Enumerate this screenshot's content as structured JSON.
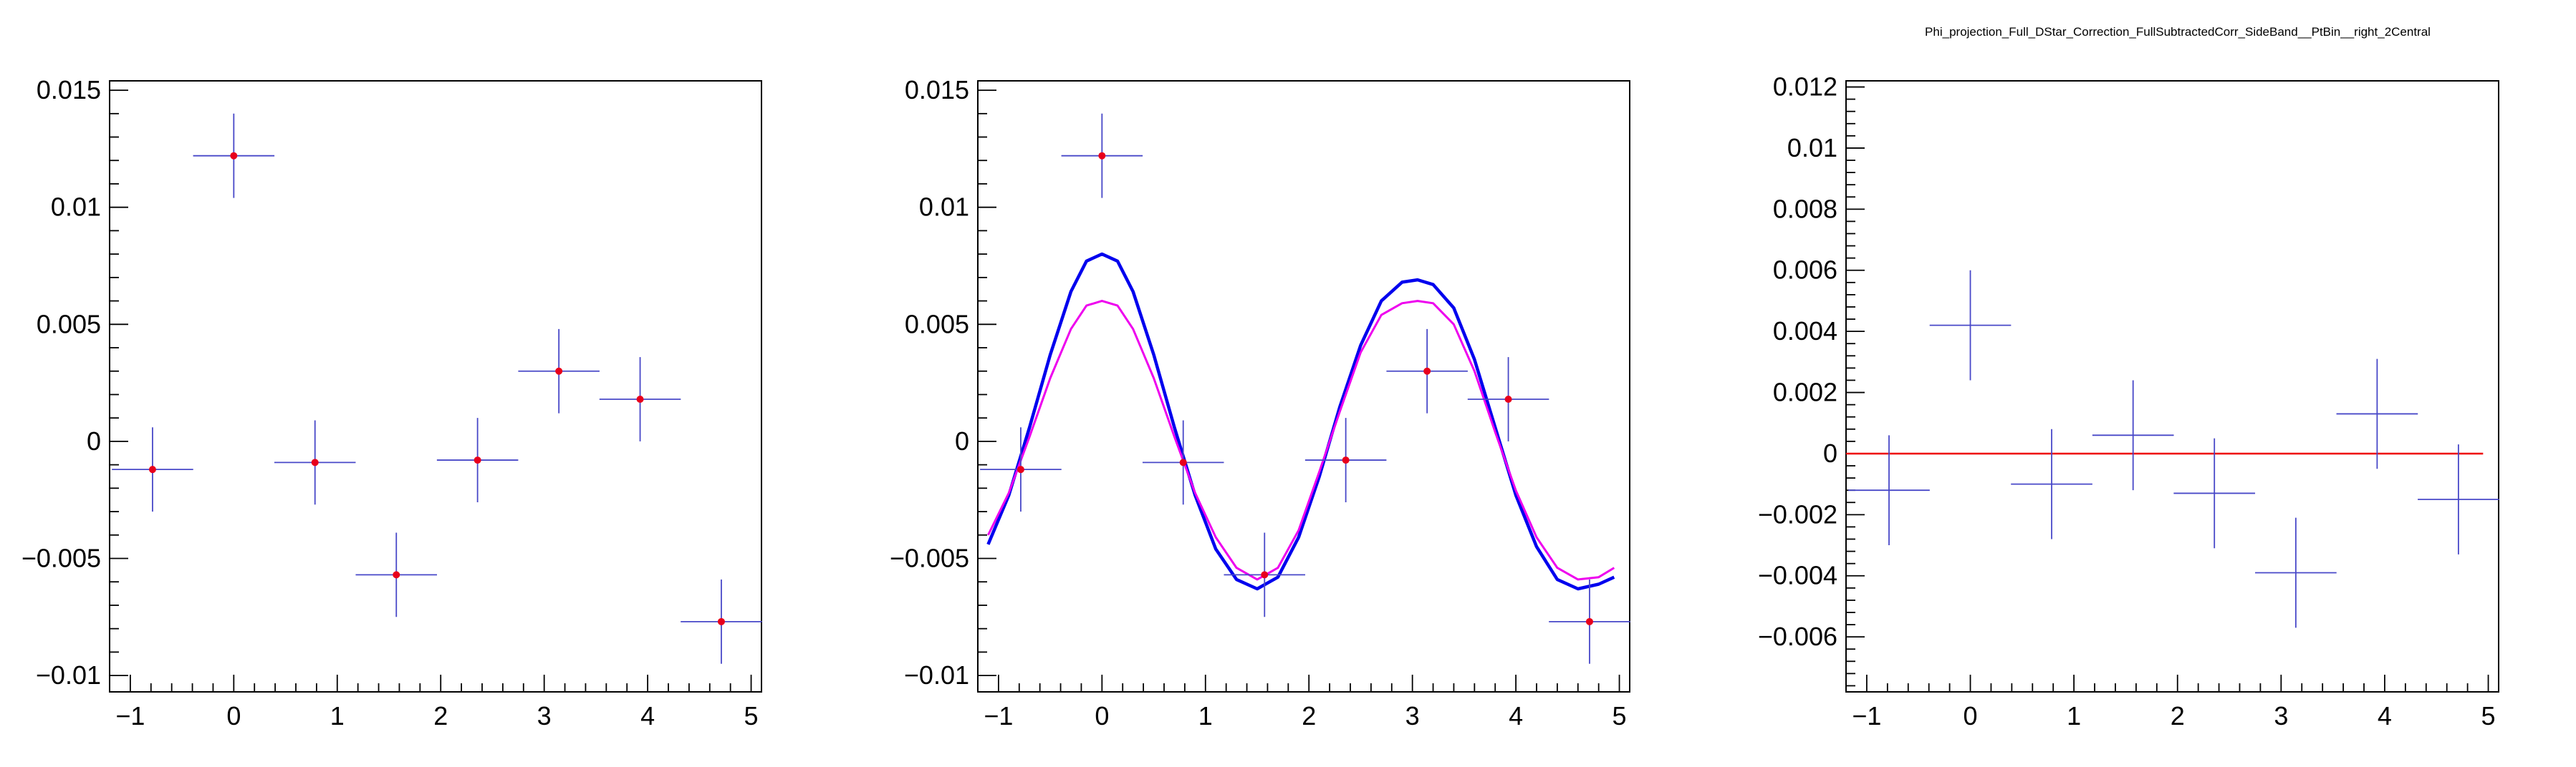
{
  "figure_title": "Phi_projection_Full_DStar_Correction_FullSubtractedCorr_SideBand__PtBin__right_2Central",
  "colors": {
    "points": "#e8001c",
    "error_bars": "#4848c8",
    "fit_blue": "#0000ee",
    "fit_magenta": "#ee00ee",
    "zero_line": "#ee0000",
    "frame": "#000000"
  },
  "chart_data": [
    {
      "type": "scatter",
      "title": "",
      "xlabel": "",
      "ylabel": "",
      "xlim": [
        -1.2,
        5.1
      ],
      "ylim": [
        -0.0107,
        0.0154
      ],
      "x_ticks": [
        -1,
        0,
        1,
        2,
        3,
        4,
        5
      ],
      "x_tick_labels": [
        "−1",
        "0",
        "1",
        "2",
        "3",
        "4",
        "5"
      ],
      "y_ticks": [
        -0.01,
        -0.005,
        0,
        0.005,
        0.01,
        0.015
      ],
      "y_tick_labels": [
        "−0.01",
        "−0.005",
        "0",
        "0.005",
        "0.01",
        "0.015"
      ],
      "grid": false,
      "series": [
        {
          "points": [
            {
              "x": -0.785,
              "y": -0.0012,
              "xerr": 0.393,
              "yerr": 0.0018
            },
            {
              "x": 0.0,
              "y": 0.0122,
              "xerr": 0.393,
              "yerr": 0.0018
            },
            {
              "x": 0.785,
              "y": -0.0009,
              "xerr": 0.393,
              "yerr": 0.0018
            },
            {
              "x": 1.571,
              "y": -0.0057,
              "xerr": 0.393,
              "yerr": 0.0018
            },
            {
              "x": 2.356,
              "y": -0.0008,
              "xerr": 0.393,
              "yerr": 0.0018
            },
            {
              "x": 3.142,
              "y": 0.003,
              "xerr": 0.393,
              "yerr": 0.0018
            },
            {
              "x": 3.927,
              "y": 0.0018,
              "xerr": 0.393,
              "yerr": 0.0018
            },
            {
              "x": 4.712,
              "y": -0.0077,
              "xerr": 0.393,
              "yerr": 0.0018
            }
          ]
        }
      ]
    },
    {
      "type": "scatter",
      "title": "",
      "xlabel": "",
      "ylabel": "",
      "xlim": [
        -1.2,
        5.1
      ],
      "ylim": [
        -0.0107,
        0.0154
      ],
      "x_ticks": [
        -1,
        0,
        1,
        2,
        3,
        4,
        5
      ],
      "x_tick_labels": [
        "−1",
        "0",
        "1",
        "2",
        "3",
        "4",
        "5"
      ],
      "y_ticks": [
        -0.01,
        -0.005,
        0,
        0.005,
        0.01,
        0.015
      ],
      "y_tick_labels": [
        "−0.01",
        "−0.005",
        "0",
        "0.005",
        "0.01",
        "0.015"
      ],
      "grid": false,
      "series": [
        {
          "points": [
            {
              "x": -0.785,
              "y": -0.0012,
              "xerr": 0.393,
              "yerr": 0.0018
            },
            {
              "x": 0.0,
              "y": 0.0122,
              "xerr": 0.393,
              "yerr": 0.0018
            },
            {
              "x": 0.785,
              "y": -0.0009,
              "xerr": 0.393,
              "yerr": 0.0018
            },
            {
              "x": 1.571,
              "y": -0.0057,
              "xerr": 0.393,
              "yerr": 0.0018
            },
            {
              "x": 2.356,
              "y": -0.0008,
              "xerr": 0.393,
              "yerr": 0.0018
            },
            {
              "x": 3.142,
              "y": 0.003,
              "xerr": 0.393,
              "yerr": 0.0018
            },
            {
              "x": 3.927,
              "y": 0.0018,
              "xerr": 0.393,
              "yerr": 0.0018
            },
            {
              "x": 4.712,
              "y": -0.0077,
              "xerr": 0.393,
              "yerr": 0.0018
            }
          ]
        }
      ],
      "curves": [
        {
          "color_key": "fit_blue",
          "x_range": [
            -1.1,
            4.95
          ],
          "samples": [
            {
              "x": -1.1,
              "y": -0.0044
            },
            {
              "x": -0.9,
              "y": -0.0023
            },
            {
              "x": -0.7,
              "y": 0.0006
            },
            {
              "x": -0.5,
              "y": 0.0037
            },
            {
              "x": -0.3,
              "y": 0.0064
            },
            {
              "x": -0.15,
              "y": 0.0077
            },
            {
              "x": 0.0,
              "y": 0.008
            },
            {
              "x": 0.15,
              "y": 0.0077
            },
            {
              "x": 0.3,
              "y": 0.0064
            },
            {
              "x": 0.5,
              "y": 0.0037
            },
            {
              "x": 0.7,
              "y": 0.0006
            },
            {
              "x": 0.9,
              "y": -0.0023
            },
            {
              "x": 1.1,
              "y": -0.0046
            },
            {
              "x": 1.3,
              "y": -0.0059
            },
            {
              "x": 1.5,
              "y": -0.0063
            },
            {
              "x": 1.7,
              "y": -0.0058
            },
            {
              "x": 1.9,
              "y": -0.0041
            },
            {
              "x": 2.1,
              "y": -0.0015
            },
            {
              "x": 2.3,
              "y": 0.0015
            },
            {
              "x": 2.5,
              "y": 0.0041
            },
            {
              "x": 2.7,
              "y": 0.006
            },
            {
              "x": 2.9,
              "y": 0.0068
            },
            {
              "x": 3.05,
              "y": 0.0069
            },
            {
              "x": 3.2,
              "y": 0.0067
            },
            {
              "x": 3.4,
              "y": 0.0057
            },
            {
              "x": 3.6,
              "y": 0.0035
            },
            {
              "x": 3.8,
              "y": 0.0006
            },
            {
              "x": 4.0,
              "y": -0.0023
            },
            {
              "x": 4.2,
              "y": -0.0045
            },
            {
              "x": 4.4,
              "y": -0.0059
            },
            {
              "x": 4.6,
              "y": -0.0063
            },
            {
              "x": 4.8,
              "y": -0.0061
            },
            {
              "x": 4.95,
              "y": -0.0058
            }
          ]
        },
        {
          "color_key": "fit_magenta",
          "x_range": [
            -1.1,
            4.95
          ],
          "samples": [
            {
              "x": -1.1,
              "y": -0.004
            },
            {
              "x": -0.9,
              "y": -0.0022
            },
            {
              "x": -0.7,
              "y": 0.0002
            },
            {
              "x": -0.5,
              "y": 0.0027
            },
            {
              "x": -0.3,
              "y": 0.0048
            },
            {
              "x": -0.15,
              "y": 0.0058
            },
            {
              "x": 0.0,
              "y": 0.006
            },
            {
              "x": 0.15,
              "y": 0.0058
            },
            {
              "x": 0.3,
              "y": 0.0048
            },
            {
              "x": 0.5,
              "y": 0.0027
            },
            {
              "x": 0.7,
              "y": 0.0002
            },
            {
              "x": 0.9,
              "y": -0.0022
            },
            {
              "x": 1.1,
              "y": -0.0041
            },
            {
              "x": 1.3,
              "y": -0.0054
            },
            {
              "x": 1.5,
              "y": -0.0059
            },
            {
              "x": 1.7,
              "y": -0.0054
            },
            {
              "x": 1.9,
              "y": -0.0038
            },
            {
              "x": 2.1,
              "y": -0.0013
            },
            {
              "x": 2.3,
              "y": 0.0013
            },
            {
              "x": 2.5,
              "y": 0.0038
            },
            {
              "x": 2.7,
              "y": 0.0054
            },
            {
              "x": 2.9,
              "y": 0.0059
            },
            {
              "x": 3.05,
              "y": 0.006
            },
            {
              "x": 3.2,
              "y": 0.0059
            },
            {
              "x": 3.4,
              "y": 0.005
            },
            {
              "x": 3.6,
              "y": 0.003
            },
            {
              "x": 3.8,
              "y": 0.0004
            },
            {
              "x": 4.0,
              "y": -0.0021
            },
            {
              "x": 4.2,
              "y": -0.0041
            },
            {
              "x": 4.4,
              "y": -0.0054
            },
            {
              "x": 4.6,
              "y": -0.0059
            },
            {
              "x": 4.8,
              "y": -0.0058
            },
            {
              "x": 4.95,
              "y": -0.0054
            }
          ]
        }
      ]
    },
    {
      "type": "scatter",
      "title": "Phi_projection_Full_DStar_Correction_FullSubtractedCorr_SideBand__PtBin__right_2Central",
      "xlabel": "",
      "ylabel": "",
      "xlim": [
        -1.2,
        5.1
      ],
      "ylim": [
        -0.0078,
        0.0122
      ],
      "x_ticks": [
        -1,
        0,
        1,
        2,
        3,
        4,
        5
      ],
      "x_tick_labels": [
        "−1",
        "0",
        "1",
        "2",
        "3",
        "4",
        "5"
      ],
      "y_ticks": [
        -0.006,
        -0.004,
        -0.002,
        0,
        0.002,
        0.004,
        0.006,
        0.008,
        0.01,
        0.012
      ],
      "y_tick_labels": [
        "−0.006",
        "−0.004",
        "−0.002",
        "0",
        "0.002",
        "0.004",
        "0.006",
        "0.008",
        "0.01",
        "0.012"
      ],
      "grid": false,
      "series": [
        {
          "points": [
            {
              "x": -0.785,
              "y": -0.0012,
              "xerr": 0.393,
              "yerr": 0.0018
            },
            {
              "x": 0.0,
              "y": 0.0042,
              "xerr": 0.393,
              "yerr": 0.0018
            },
            {
              "x": 0.785,
              "y": -0.001,
              "xerr": 0.393,
              "yerr": 0.0018
            },
            {
              "x": 1.571,
              "y": 0.0006,
              "xerr": 0.393,
              "yerr": 0.0018
            },
            {
              "x": 2.356,
              "y": -0.0013,
              "xerr": 0.393,
              "yerr": 0.0018
            },
            {
              "x": 3.142,
              "y": -0.0039,
              "xerr": 0.393,
              "yerr": 0.0018
            },
            {
              "x": 3.927,
              "y": 0.0013,
              "xerr": 0.393,
              "yerr": 0.0018
            },
            {
              "x": 4.712,
              "y": -0.0015,
              "xerr": 0.393,
              "yerr": 0.0018
            }
          ]
        }
      ],
      "reference_line": {
        "y": 0,
        "x_range": [
          -1.2,
          4.95
        ]
      }
    }
  ]
}
